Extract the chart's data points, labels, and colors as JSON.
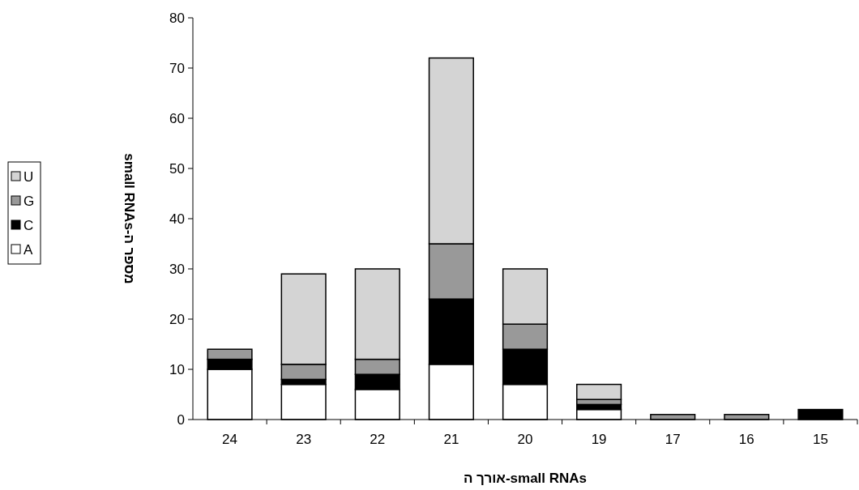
{
  "chart_data": {
    "type": "bar",
    "stacked": true,
    "categories": [
      "24",
      "23",
      "22",
      "21",
      "20",
      "19",
      "17",
      "16",
      "15"
    ],
    "series": [
      {
        "name": "A",
        "color": "#ffffff",
        "values": [
          10,
          7,
          6,
          11,
          7,
          2,
          0,
          0,
          0
        ]
      },
      {
        "name": "C",
        "color": "#000000",
        "values": [
          2,
          1,
          3,
          13,
          7,
          1,
          0,
          0,
          2
        ]
      },
      {
        "name": "G",
        "color": "#999999",
        "values": [
          2,
          3,
          3,
          11,
          5,
          1,
          1,
          1,
          0
        ]
      },
      {
        "name": "U",
        "color": "#d4d4d4",
        "values": [
          0,
          18,
          18,
          37,
          11,
          3,
          0,
          0,
          0
        ]
      }
    ],
    "ylim": [
      0,
      80
    ],
    "yticks": [
      0,
      10,
      20,
      30,
      40,
      50,
      60,
      70,
      80
    ],
    "xlabel": "אורך ה-small RNAs",
    "ylabel": "מספר ה-small RNAs",
    "legend": "left",
    "grid": false
  }
}
